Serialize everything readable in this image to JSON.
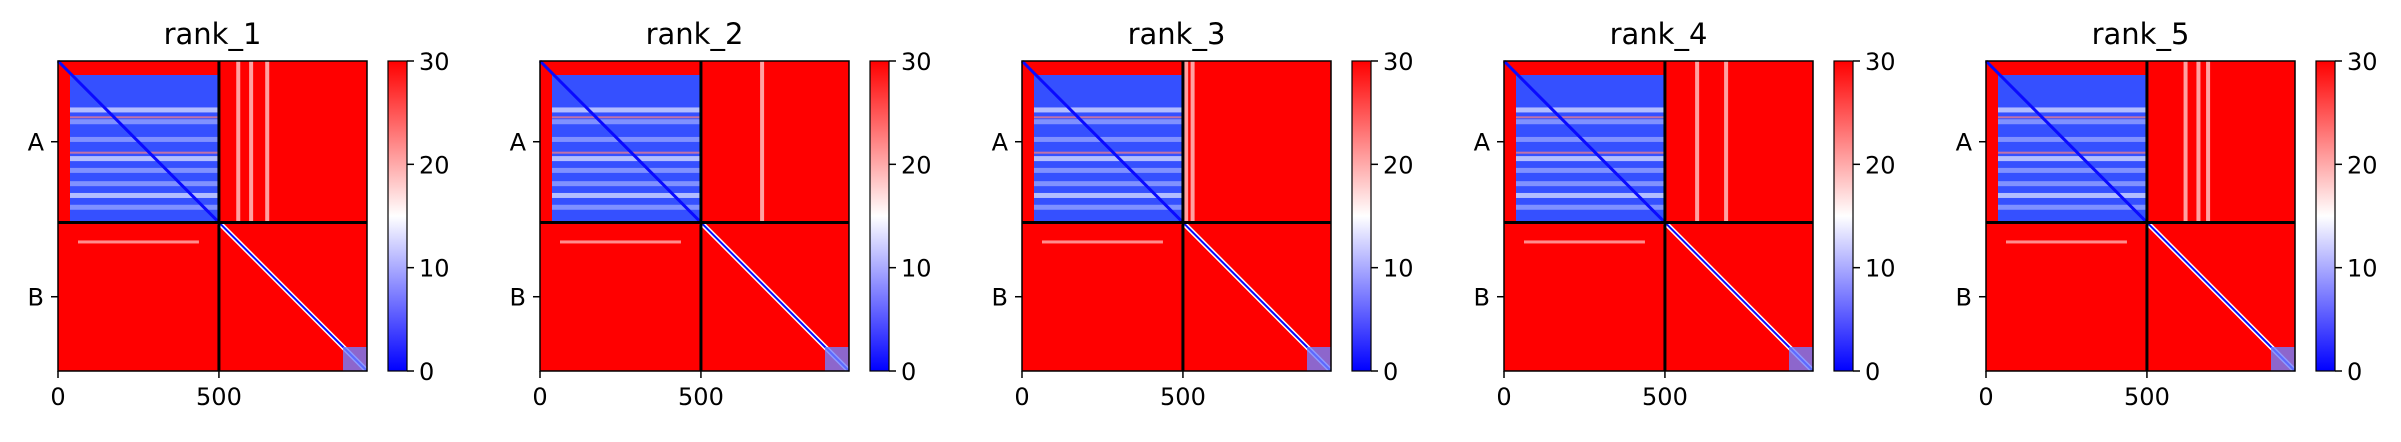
{
  "chart_data": [
    {
      "type": "heatmap",
      "title": "rank_1",
      "row_labels": [
        "A",
        "B"
      ],
      "x_ticks": [
        "0",
        "500"
      ],
      "colorbar_ticks": [
        "0",
        "10",
        "20",
        "30"
      ],
      "colorbar_range": [
        0,
        30
      ],
      "colormap": "bwr",
      "chain_boundary": 500,
      "matrix_size": 960,
      "bright_columns": [
        560,
        600,
        650
      ]
    },
    {
      "type": "heatmap",
      "title": "rank_2",
      "row_labels": [
        "A",
        "B"
      ],
      "x_ticks": [
        "0",
        "500"
      ],
      "colorbar_ticks": [
        "0",
        "10",
        "20",
        "30"
      ],
      "colorbar_range": [
        0,
        30
      ],
      "colormap": "bwr",
      "chain_boundary": 500,
      "matrix_size": 960,
      "bright_columns": [
        690
      ]
    },
    {
      "type": "heatmap",
      "title": "rank_3",
      "row_labels": [
        "A",
        "B"
      ],
      "x_ticks": [
        "0",
        "500"
      ],
      "colorbar_ticks": [
        "0",
        "10",
        "20",
        "30"
      ],
      "colorbar_range": [
        0,
        30
      ],
      "colormap": "bwr",
      "chain_boundary": 500,
      "matrix_size": 960,
      "bright_columns": [
        510,
        530
      ]
    },
    {
      "type": "heatmap",
      "title": "rank_4",
      "row_labels": [
        "A",
        "B"
      ],
      "x_ticks": [
        "0",
        "500"
      ],
      "colorbar_ticks": [
        "0",
        "10",
        "20",
        "30"
      ],
      "colorbar_range": [
        0,
        30
      ],
      "colormap": "bwr",
      "chain_boundary": 500,
      "matrix_size": 960,
      "bright_columns": [
        600,
        690
      ]
    },
    {
      "type": "heatmap",
      "title": "rank_5",
      "row_labels": [
        "A",
        "B"
      ],
      "x_ticks": [
        "0",
        "500"
      ],
      "colorbar_ticks": [
        "0",
        "10",
        "20",
        "30"
      ],
      "colorbar_range": [
        0,
        30
      ],
      "colormap": "bwr",
      "chain_boundary": 500,
      "matrix_size": 960,
      "bright_columns": [
        620,
        660,
        690
      ]
    }
  ],
  "colors": {
    "low": "#0000ff",
    "mid": "#ffffff",
    "high": "#ff0000"
  }
}
